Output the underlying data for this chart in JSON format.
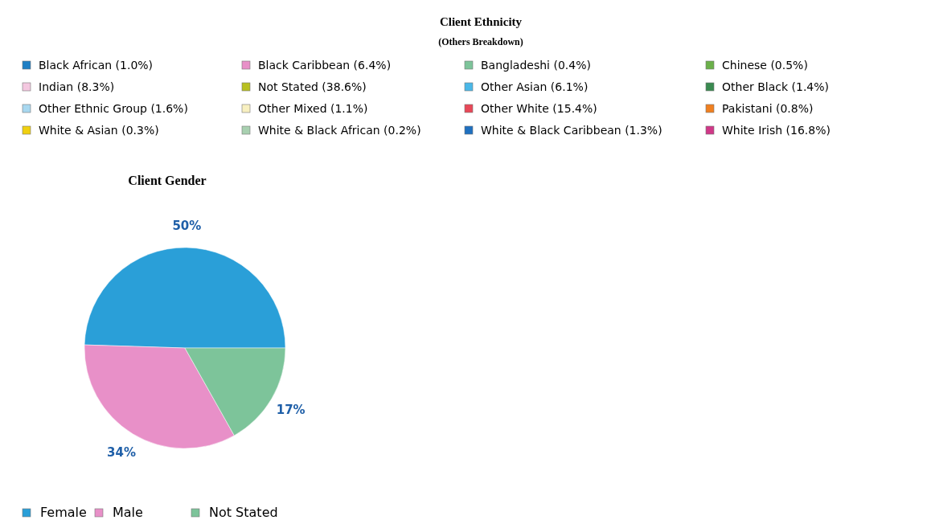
{
  "chart_data": [
    {
      "type": "other",
      "title": "Client Ethnicity",
      "subtitle": "(Others Breakdown)",
      "categories": [
        "Black African (1.0%)",
        "Black Caribbean (6.4%)",
        "Bangladeshi (0.4%)",
        "Chinese (0.5%)",
        "Indian (8.3%)",
        "Not Stated (38.6%)",
        "Other Asian (6.1%)",
        "Other Black (1.4%)",
        "Other Ethnic Group (1.6%)",
        "Other Mixed (1.1%)",
        "Other White (15.4%)",
        "Pakistani (0.8%)",
        "White & Asian (0.3%)",
        "White & Black African (0.2%)",
        "White & Black Caribbean (1.3%)",
        "White Irish (16.8%)"
      ],
      "colors": [
        "#1f7fc4",
        "#e890c8",
        "#7dc49a",
        "#6bb04a",
        "#f4c8e0",
        "#b8c020",
        "#4ab8e8",
        "#3a8a50",
        "#a8d8f0",
        "#f8f0c0",
        "#e84858",
        "#f08020",
        "#f0d010",
        "#a8d0b0",
        "#1f70c0",
        "#d03888"
      ]
    },
    {
      "type": "pie",
      "title": "Client Gender",
      "legend": "bottom",
      "data_labels": true,
      "categories": [
        "Female",
        "Male",
        "Not Stated"
      ],
      "values": [
        50,
        34,
        17
      ],
      "value_labels": [
        "50%",
        "34%",
        "17%"
      ],
      "colors": [
        "#2a9fd8",
        "#e890c8",
        "#7dc49a"
      ]
    }
  ]
}
